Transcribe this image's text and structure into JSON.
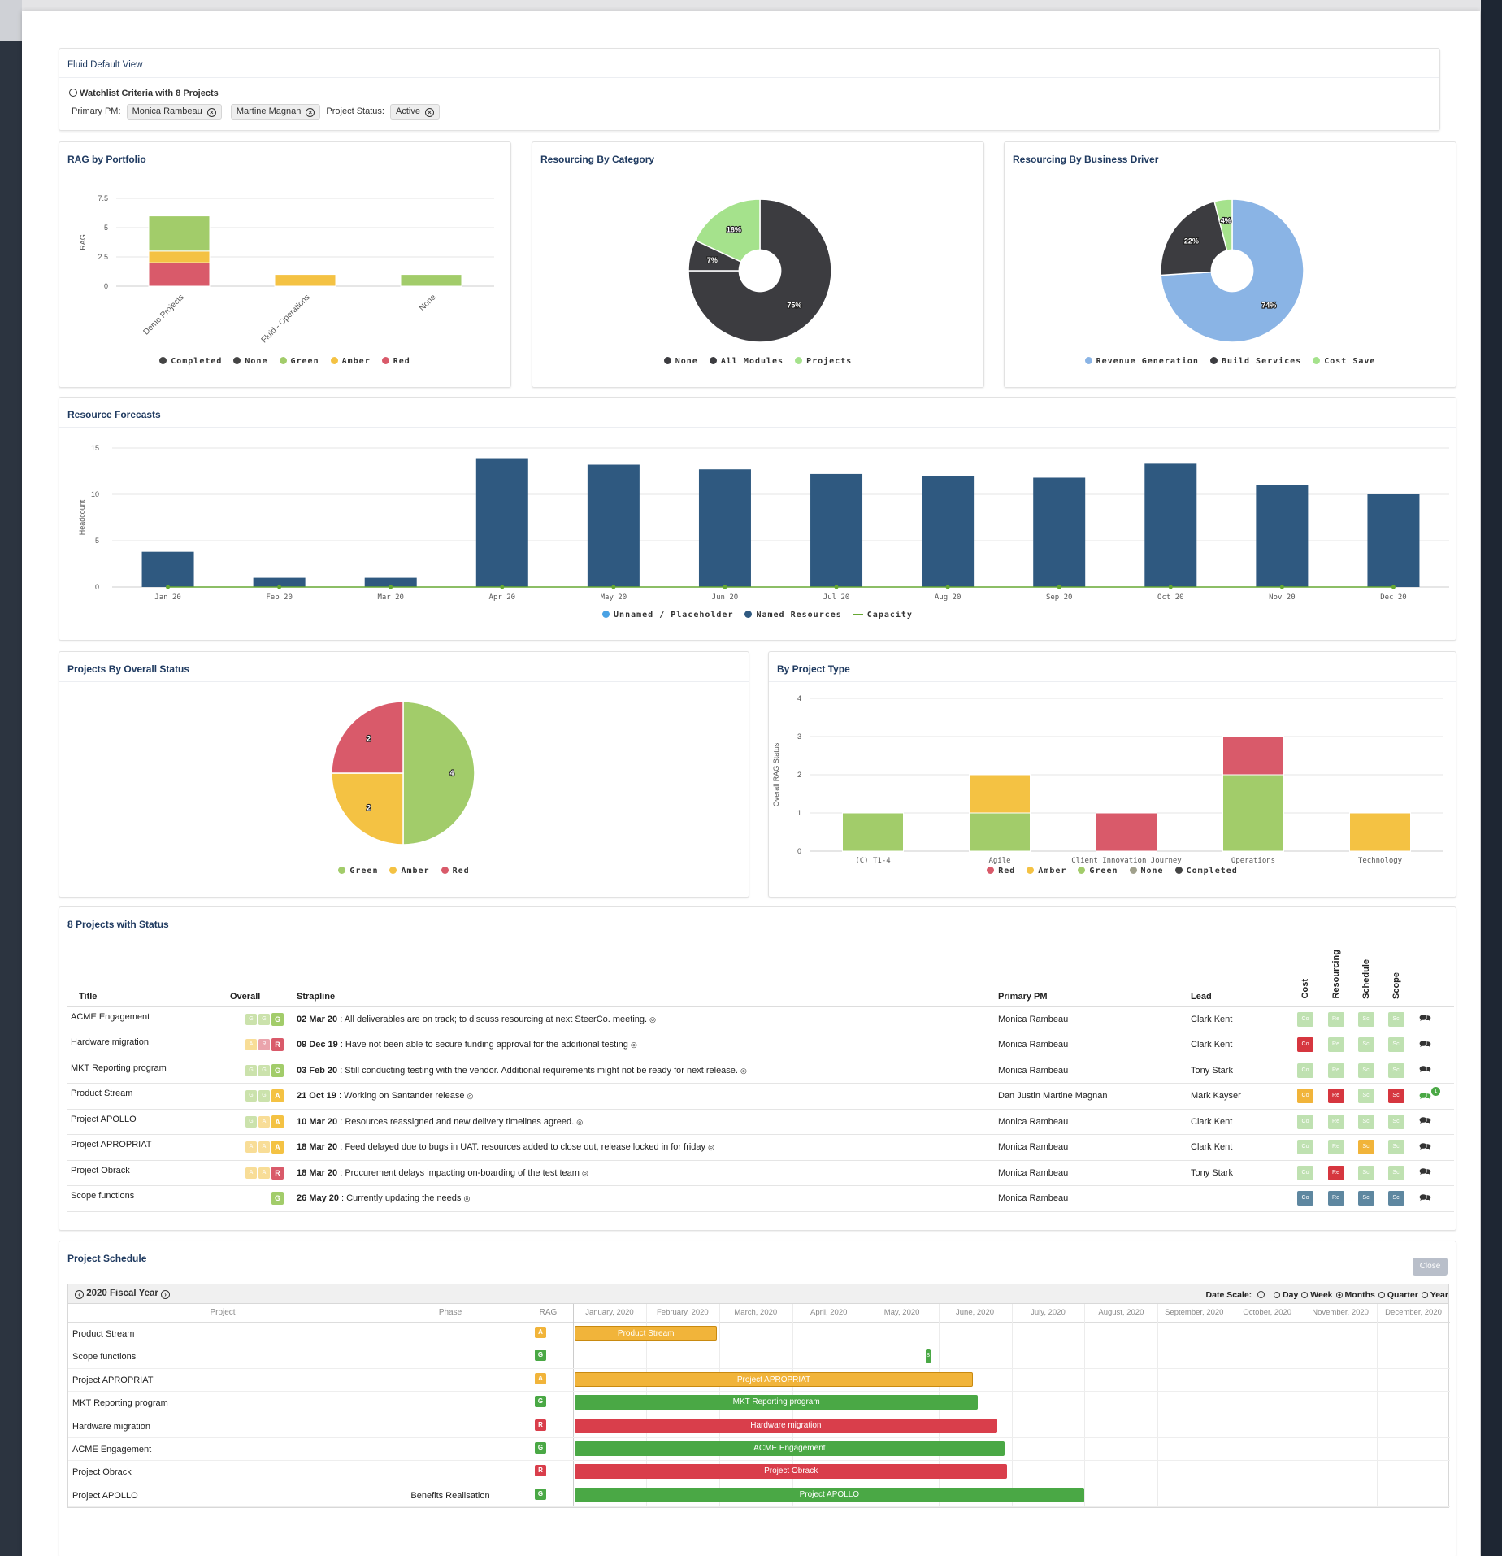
{
  "colors": {
    "green": "#a2cc6a",
    "amber": "#f4c243",
    "red": "#d95a6a",
    "dark": "#3c3c40",
    "navy": "#2f5980",
    "blue": "#8ab4e5",
    "lightgreen": "#a5e28c",
    "capacity": "#66a833",
    "gantt_green": "#4aa845",
    "gantt_amber": "#f1b43a",
    "gantt_red": "#d93e4b"
  },
  "header": {
    "title": "Fluid Default View",
    "watch": "Watchlist Criteria with 8 Projects",
    "pm_label": "Primary PM:",
    "pm1": "Monica Rambeau",
    "pm2": "Martine Magnan",
    "status_label": "Project Status:",
    "status": "Active",
    "x": "⊗"
  },
  "rag_portfolio": {
    "title": "RAG by Portfolio",
    "legend": [
      "Completed",
      "None",
      "Green",
      "Amber",
      "Red"
    ],
    "chart_data": {
      "type": "bar",
      "stacked": true,
      "categories": [
        "Demo Projects",
        "Fluid - Operations",
        "None"
      ],
      "ylabel": "RAG",
      "ylim": [
        0,
        7.5
      ],
      "yticks": [
        "0",
        "2.5",
        "5",
        "7.5"
      ],
      "series": [
        {
          "name": "Red",
          "values": [
            2,
            0,
            0
          ]
        },
        {
          "name": "Amber",
          "values": [
            1,
            1,
            0
          ]
        },
        {
          "name": "Green",
          "values": [
            3,
            0,
            1
          ]
        }
      ]
    }
  },
  "res_category": {
    "title": "Resourcing By Category",
    "legend": [
      "None",
      "All Modules",
      "Projects"
    ],
    "chart_data": {
      "type": "pie",
      "donut": true,
      "labels": [
        "None",
        "All Modules",
        "Projects"
      ],
      "values": [
        75,
        7,
        18
      ],
      "data_labels": [
        "75%",
        "7%",
        "18%"
      ]
    }
  },
  "res_driver": {
    "title": "Resourcing By Business Driver",
    "legend": [
      "Revenue Generation",
      "Build Services",
      "Cost Save"
    ],
    "chart_data": {
      "type": "pie",
      "donut": true,
      "labels": [
        "Revenue Generation",
        "Build Services",
        "Cost Save"
      ],
      "values": [
        74,
        22,
        4
      ],
      "data_labels": [
        "74%",
        "22%",
        "4%"
      ]
    }
  },
  "forecasts": {
    "title": "Resource Forecasts",
    "legend": [
      "Unnamed / Placeholder",
      "Named Resources",
      "Capacity"
    ],
    "chart_data": {
      "type": "bar",
      "categories": [
        "Jan 20",
        "Feb 20",
        "Mar 20",
        "Apr 20",
        "May 20",
        "Jun 20",
        "Jul 20",
        "Aug 20",
        "Sep 20",
        "Oct 20",
        "Nov 20",
        "Dec 20"
      ],
      "ylabel": "Headcount",
      "ylim": [
        0,
        15
      ],
      "yticks": [
        "0",
        "5",
        "10",
        "15"
      ],
      "series": [
        {
          "name": "Named Resources",
          "values": [
            3.8,
            1,
            1,
            13.9,
            13.2,
            12.7,
            12.2,
            12,
            11.8,
            13.3,
            11,
            10
          ]
        },
        {
          "name": "Capacity",
          "values": [
            0,
            0,
            0,
            0,
            0,
            0,
            0,
            0,
            0,
            0,
            0,
            0
          ]
        }
      ]
    }
  },
  "overall_status": {
    "title": "Projects By Overall Status",
    "legend": [
      "Green",
      "Amber",
      "Red"
    ],
    "chart_data": {
      "type": "pie",
      "labels": [
        "Green",
        "Amber",
        "Red"
      ],
      "values": [
        4,
        2,
        2
      ],
      "data_labels": [
        "4",
        "2",
        "2"
      ]
    }
  },
  "project_type": {
    "title": "By Project Type",
    "legend": [
      "Red",
      "Amber",
      "Green",
      "None",
      "Completed"
    ],
    "chart_data": {
      "type": "bar",
      "stacked": true,
      "categories": [
        "(C) T1-4",
        "Agile",
        "Client Innovation Journey",
        "Operations",
        "Technology"
      ],
      "ylabel": "Overall RAG Status",
      "ylim": [
        0,
        4
      ],
      "yticks": [
        "0",
        "1",
        "2",
        "3",
        "4"
      ],
      "series": [
        {
          "name": "Green",
          "values": [
            1,
            1,
            0,
            2,
            0
          ]
        },
        {
          "name": "Amber",
          "values": [
            0,
            1,
            0,
            0,
            1
          ]
        },
        {
          "name": "Red",
          "values": [
            0,
            0,
            1,
            1,
            0
          ]
        }
      ]
    }
  },
  "projects": {
    "title": "8 Projects with Status",
    "cols": [
      "Title",
      "Overall",
      "Strapline",
      "Primary PM",
      "Lead",
      "Cost",
      "Resourcing",
      "Schedule",
      "Scope"
    ],
    "rows": [
      {
        "title": "ACME Engagement",
        "overall": [
          "G",
          "G",
          "G"
        ],
        "date": "02 Mar 20",
        "text": " : All deliverables are on track; to discuss resourcing at next SteerCo. meeting.",
        "pm": "Monica Rambeau",
        "lead": "Clark Kent",
        "st": [
          "g",
          "g",
          "g",
          "g"
        ],
        "badge": ""
      },
      {
        "title": "Hardware migration",
        "overall": [
          "A",
          "R",
          "R"
        ],
        "date": "09 Dec 19",
        "text": " : Have not been able to secure funding approval for the additional testing",
        "pm": "Monica Rambeau",
        "lead": "Clark Kent",
        "st": [
          "R",
          "g",
          "g",
          "g"
        ],
        "badge": ""
      },
      {
        "title": "MKT Reporting program",
        "overall": [
          "G",
          "G",
          "G"
        ],
        "date": "03 Feb 20",
        "text": " : Still conducting testing with the vendor. Additional requirements might not be ready for next release.",
        "pm": "Monica Rambeau",
        "lead": "Tony Stark",
        "st": [
          "g",
          "g",
          "g",
          "g"
        ],
        "badge": ""
      },
      {
        "title": "Product Stream",
        "overall": [
          "G",
          "G",
          "A"
        ],
        "date": "21 Oct 19",
        "text": " : Working on Santander release",
        "pm": "Dan Justin  Martine Magnan",
        "lead": "Mark Kayser",
        "st": [
          "A",
          "R",
          "g",
          "R"
        ],
        "badge": "1"
      },
      {
        "title": "Project APOLLO",
        "overall": [
          "G",
          "A",
          "A"
        ],
        "date": "10 Mar 20",
        "text": " : Resources reassigned and new delivery timelines agreed.",
        "pm": "Monica Rambeau",
        "lead": "Clark Kent",
        "st": [
          "g",
          "g",
          "g",
          "g"
        ],
        "badge": ""
      },
      {
        "title": "Project APROPRIAT",
        "overall": [
          "A",
          "A",
          "A"
        ],
        "date": "18 Mar 20",
        "text": " : Feed delayed due to bugs in UAT. resources added to close out, release locked in for friday",
        "pm": "Monica Rambeau",
        "lead": "Clark Kent",
        "st": [
          "g",
          "g",
          "A",
          "g"
        ],
        "badge": ""
      },
      {
        "title": "Project Obrack",
        "overall": [
          "A",
          "A",
          "R"
        ],
        "date": "18 Mar 20",
        "text": " : Procurement delays impacting on-boarding of the test team",
        "pm": "Monica Rambeau",
        "lead": "Tony Stark",
        "st": [
          "g",
          "R",
          "g",
          "g"
        ],
        "badge": ""
      },
      {
        "title": "Scope functions",
        "overall": [
          "",
          "",
          "G"
        ],
        "date": "26 May 20",
        "text": " : Currently updating the needs",
        "pm": "Monica Rambeau",
        "lead": "",
        "st": [
          "B",
          "B",
          "B",
          "B"
        ],
        "badge": ""
      }
    ],
    "status_abbr": [
      "Co",
      "Re",
      "Sc",
      "Sc"
    ],
    "info": "◎",
    "comment": "🗪"
  },
  "schedule": {
    "title": "Project Schedule",
    "close": "Close",
    "fy": "2020 Fiscal Year",
    "date_scale": "Date Scale:",
    "scales": [
      "Day",
      "Week",
      "Months",
      "Quarter",
      "Year"
    ],
    "selected": "Months",
    "cols": [
      "Project",
      "Phase",
      "RAG"
    ],
    "months": [
      "January, 2020",
      "February, 2020",
      "March, 2020",
      "April, 2020",
      "May, 2020",
      "June, 2020",
      "July, 2020",
      "August, 2020",
      "September, 2020",
      "October, 2020",
      "November, 2020",
      "December, 2020"
    ],
    "rows": [
      {
        "project": "Product Stream",
        "phase": "",
        "rag": "A",
        "bar": "Product Stream",
        "start": 0,
        "end": 1.95
      },
      {
        "project": "Scope functions",
        "phase": "",
        "rag": "G",
        "bar": "S",
        "start": 4.8,
        "end": 4.87
      },
      {
        "project": "Project APROPRIAT",
        "phase": "",
        "rag": "A",
        "bar": "Project APROPRIAT",
        "start": 0,
        "end": 5.45
      },
      {
        "project": "MKT Reporting program",
        "phase": "",
        "rag": "G",
        "bar": "MKT Reporting program",
        "start": 0,
        "end": 5.52
      },
      {
        "project": "Hardware migration",
        "phase": "",
        "rag": "R",
        "bar": "Hardware migration",
        "start": 0,
        "end": 5.78
      },
      {
        "project": "ACME Engagement",
        "phase": "",
        "rag": "G",
        "bar": "ACME Engagement",
        "start": 0,
        "end": 5.88
      },
      {
        "project": "Project Obrack",
        "phase": "",
        "rag": "R",
        "bar": "Project Obrack",
        "start": 0,
        "end": 5.92
      },
      {
        "project": "Project APOLLO",
        "phase": "Benefits Realisation",
        "rag": "G",
        "bar": "Project APOLLO",
        "start": 0,
        "end": 6.97
      }
    ]
  }
}
